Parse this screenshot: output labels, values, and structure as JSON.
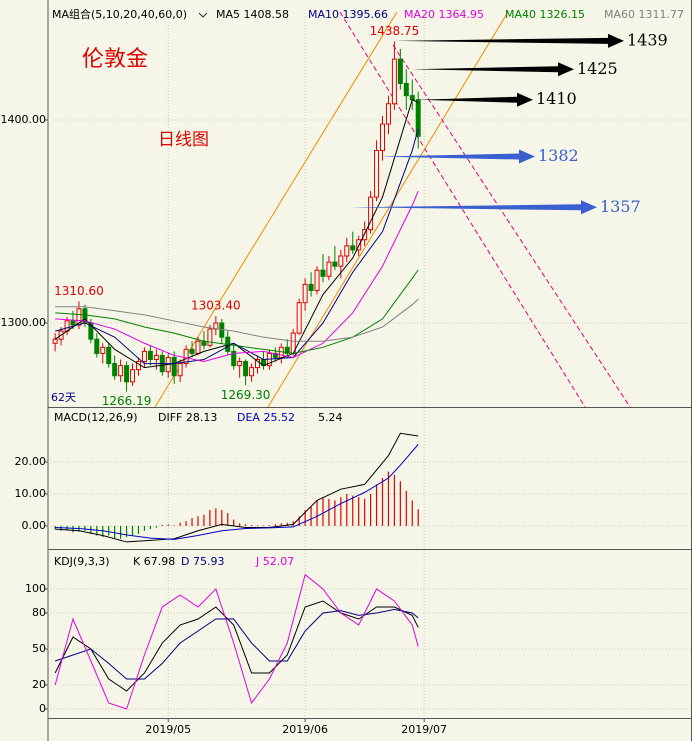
{
  "chart_data": [
    {
      "type": "candlestick",
      "title": "伦敦金",
      "subtitle": "日线图",
      "indicator_label": "MA组合(5,10,20,40,60,0)",
      "period_label": "62天",
      "xlim": [
        -1.2,
        107
      ],
      "xticks": [
        {
          "value": 19,
          "label": "2019/05"
        },
        {
          "value": 42,
          "label": "2019/06"
        },
        {
          "value": 62,
          "label": "2019/07"
        }
      ],
      "ylim": [
        1258.6,
        1454.2
      ],
      "yticks": [
        {
          "value": 1300,
          "label": "1300.00"
        },
        {
          "value": 1400,
          "label": "1400.00"
        }
      ],
      "grid": true,
      "up_color": "#e00000",
      "down_color": "#008000",
      "ohlc": [
        [
          1290,
          1295,
          1286,
          1292
        ],
        [
          1292,
          1298,
          1289,
          1296
        ],
        [
          1296,
          1303,
          1294,
          1301
        ],
        [
          1301,
          1306,
          1297,
          1299
        ],
        [
          1299,
          1310.6,
          1297,
          1307
        ],
        [
          1307,
          1309,
          1298,
          1300
        ],
        [
          1300,
          1302,
          1290,
          1292
        ],
        [
          1292,
          1295,
          1283,
          1285
        ],
        [
          1285,
          1290,
          1280,
          1288
        ],
        [
          1288,
          1290,
          1278,
          1280
        ],
        [
          1280,
          1284,
          1272,
          1274
        ],
        [
          1274,
          1282,
          1271,
          1279
        ],
        [
          1279,
          1281,
          1266.19,
          1271
        ],
        [
          1271,
          1280,
          1269,
          1277
        ],
        [
          1277,
          1283,
          1274,
          1281
        ],
        [
          1281,
          1288,
          1278,
          1286
        ],
        [
          1286,
          1289,
          1279,
          1282
        ],
        [
          1282,
          1287,
          1277,
          1284
        ],
        [
          1284,
          1286,
          1274,
          1276
        ],
        [
          1276,
          1285,
          1273,
          1283
        ],
        [
          1283,
          1286,
          1270,
          1274
        ],
        [
          1274,
          1282,
          1271,
          1280
        ],
        [
          1280,
          1289,
          1278,
          1287
        ],
        [
          1287,
          1291,
          1283,
          1285
        ],
        [
          1285,
          1293,
          1284,
          1291
        ],
        [
          1291,
          1296,
          1287,
          1289
        ],
        [
          1289,
          1299,
          1288,
          1297
        ],
        [
          1297,
          1303.4,
          1294,
          1300
        ],
        [
          1300,
          1302,
          1290,
          1293
        ],
        [
          1293,
          1296,
          1284,
          1286
        ],
        [
          1286,
          1290,
          1277,
          1279
        ],
        [
          1279,
          1283,
          1273,
          1281
        ],
        [
          1281,
          1282,
          1269.3,
          1274
        ],
        [
          1274,
          1280,
          1271,
          1278
        ],
        [
          1278,
          1284,
          1275,
          1282
        ],
        [
          1282,
          1286,
          1277,
          1279
        ],
        [
          1279,
          1287,
          1277,
          1285
        ],
        [
          1285,
          1288,
          1281,
          1283
        ],
        [
          1283,
          1290,
          1280,
          1288
        ],
        [
          1288,
          1292,
          1283,
          1285
        ],
        [
          1285,
          1297,
          1284,
          1295
        ],
        [
          1295,
          1312,
          1294,
          1310
        ],
        [
          1310,
          1322,
          1306,
          1319
        ],
        [
          1319,
          1325,
          1313,
          1316
        ],
        [
          1316,
          1328,
          1314,
          1326
        ],
        [
          1326,
          1334,
          1320,
          1323
        ],
        [
          1323,
          1333,
          1321,
          1330
        ],
        [
          1330,
          1338,
          1326,
          1328
        ],
        [
          1328,
          1336,
          1322,
          1333
        ],
        [
          1333,
          1342,
          1330,
          1338
        ],
        [
          1338,
          1345,
          1334,
          1336
        ],
        [
          1336,
          1343,
          1333,
          1341
        ],
        [
          1341,
          1350,
          1338,
          1346
        ],
        [
          1346,
          1365,
          1344,
          1362
        ],
        [
          1362,
          1390,
          1360,
          1385
        ],
        [
          1385,
          1402,
          1380,
          1398
        ],
        [
          1398,
          1412,
          1393,
          1408
        ],
        [
          1408,
          1438.75,
          1405,
          1430
        ],
        [
          1430,
          1435,
          1415,
          1418
        ],
        [
          1418,
          1425,
          1405,
          1412
        ],
        [
          1412,
          1420,
          1405,
          1410
        ],
        [
          1410,
          1414,
          1386,
          1392
        ]
      ],
      "series": [
        {
          "name": "MA5",
          "color": "#000000",
          "x": [
            0,
            5,
            10,
            15,
            20,
            25,
            30,
            35,
            40,
            45,
            50,
            55,
            60,
            61
          ],
          "values": [
            1292,
            1302,
            1287,
            1278,
            1280,
            1286,
            1290,
            1279,
            1285,
            1314,
            1332,
            1362,
            1410,
            1408.58
          ]
        },
        {
          "name": "MA10",
          "color": "#000080",
          "x": [
            0,
            5,
            10,
            15,
            20,
            25,
            30,
            35,
            40,
            45,
            50,
            55,
            60,
            61
          ],
          "values": [
            1296,
            1300,
            1293,
            1280,
            1280,
            1282,
            1290,
            1282,
            1283,
            1300,
            1325,
            1345,
            1385,
            1395.66
          ]
        },
        {
          "name": "MA20",
          "color": "#e000e0",
          "x": [
            0,
            5,
            10,
            15,
            20,
            25,
            30,
            35,
            40,
            45,
            50,
            55,
            60,
            61
          ],
          "values": [
            1302,
            1301,
            1297,
            1290,
            1284,
            1281,
            1285,
            1286,
            1283,
            1290,
            1305,
            1328,
            1358,
            1364.95
          ]
        },
        {
          "name": "MA40",
          "color": "#008000",
          "x": [
            0,
            5,
            10,
            15,
            20,
            25,
            30,
            35,
            40,
            45,
            50,
            55,
            60,
            61
          ],
          "values": [
            1305,
            1304,
            1302,
            1298,
            1295,
            1291,
            1289,
            1287,
            1285,
            1288,
            1293,
            1302,
            1322,
            1326.15
          ]
        },
        {
          "name": "MA60",
          "color": "#808080",
          "x": [
            0,
            5,
            10,
            15,
            20,
            25,
            30,
            35,
            40,
            45,
            50,
            55,
            60,
            61
          ],
          "values": [
            1308,
            1308,
            1306,
            1304,
            1301,
            1298,
            1296,
            1293,
            1291,
            1291,
            1293,
            1298,
            1309,
            1311.77
          ]
        }
      ],
      "extremes": [
        {
          "value": 1438.75,
          "color": "#e00000"
        },
        {
          "value": 1310.6,
          "label": "1310.60",
          "color": "#e00000"
        },
        {
          "value": 1303.4,
          "label": "1303.40",
          "color": "#e00000"
        },
        {
          "value": 1266.19,
          "color": "#008000"
        },
        {
          "value": 1269.3,
          "label": "1269.30",
          "color": "#008000"
        }
      ],
      "arrows": [
        {
          "value": 1439,
          "color": "#000000"
        },
        {
          "value": 1425,
          "color": "#000000"
        },
        {
          "value": 1410,
          "color": "#000000"
        },
        {
          "value": 1382,
          "color": "#3a5fd0"
        },
        {
          "value": 1357,
          "color": "#3a5fd0"
        }
      ]
    },
    {
      "type": "macd",
      "title": "MACD(12,26,9)",
      "ylim": [
        -6.9,
        36.9
      ],
      "yticks": [
        {
          "value": 20,
          "label": "20.00"
        },
        {
          "value": 10,
          "label": "10.00"
        },
        {
          "value": 0,
          "label": "0.00"
        }
      ],
      "series": [
        {
          "name": "DIFF",
          "color": "#000000",
          "x": [
            0,
            4,
            8,
            12,
            16,
            20,
            24,
            28,
            32,
            36,
            40,
            44,
            48,
            52,
            56,
            58,
            61
          ],
          "values": [
            -1,
            -1.5,
            -3,
            -5,
            -4.5,
            -4,
            -1.5,
            0.5,
            -0.5,
            -0.5,
            0.5,
            8,
            11.5,
            13,
            22,
            29,
            28.13
          ]
        },
        {
          "name": "DEA",
          "color": "#0000c0",
          "x": [
            0,
            4,
            8,
            12,
            16,
            20,
            24,
            28,
            32,
            36,
            40,
            44,
            48,
            52,
            56,
            58,
            61
          ],
          "values": [
            -0.5,
            -0.8,
            -1.5,
            -2.8,
            -3.8,
            -4.2,
            -3,
            -1.5,
            -0.8,
            -0.6,
            -0.3,
            3,
            7,
            10.5,
            15,
            19,
            25.52
          ]
        }
      ],
      "histogram": {
        "up_color": "#e00000",
        "down_color": "#008000",
        "values": [
          -1,
          -1.5,
          -1.2,
          -2,
          -1.8,
          -1.5,
          -2.5,
          -3,
          -3.5,
          -3,
          -3.8,
          -4,
          -3.5,
          -3,
          -2.5,
          -1.5,
          -1,
          -0.5,
          0.3,
          0.5,
          0.2,
          1,
          1.5,
          2.5,
          3,
          3.5,
          5,
          5.5,
          5,
          4,
          2,
          0.8,
          0.5,
          0.3,
          0.2,
          0.2,
          0.3,
          0.5,
          0.8,
          1,
          1.5,
          3,
          5,
          6,
          8,
          9,
          8.5,
          8,
          9,
          10,
          9.5,
          9,
          8.5,
          10,
          13,
          15,
          17,
          16,
          14,
          11,
          8,
          5.24
        ]
      }
    },
    {
      "type": "kdj",
      "title": "KDJ(9,3,3)",
      "ylim": [
        -7.5,
        132.5
      ],
      "yticks": [
        100,
        80,
        50,
        20,
        0
      ],
      "series": [
        {
          "name": "K",
          "color": "#000000",
          "x": [
            0,
            3,
            6,
            9,
            12,
            15,
            18,
            21,
            24,
            27,
            30,
            33,
            36,
            39,
            42,
            45,
            48,
            51,
            54,
            57,
            60,
            61
          ],
          "values": [
            30,
            60,
            50,
            25,
            15,
            30,
            55,
            70,
            75,
            85,
            70,
            30,
            30,
            45,
            85,
            90,
            80,
            75,
            85,
            85,
            78,
            67.98
          ]
        },
        {
          "name": "D",
          "color": "#000080",
          "x": [
            0,
            3,
            6,
            9,
            12,
            15,
            18,
            21,
            24,
            27,
            30,
            33,
            36,
            39,
            42,
            45,
            48,
            51,
            54,
            57,
            60,
            61
          ],
          "values": [
            40,
            45,
            50,
            38,
            25,
            25,
            38,
            55,
            65,
            75,
            75,
            55,
            40,
            40,
            65,
            80,
            82,
            78,
            80,
            83,
            80,
            75.93
          ]
        },
        {
          "name": "J",
          "color": "#e000e0",
          "x": [
            0,
            3,
            6,
            9,
            12,
            15,
            18,
            21,
            24,
            27,
            30,
            33,
            36,
            39,
            42,
            45,
            48,
            51,
            54,
            57,
            60,
            61
          ],
          "values": [
            20,
            75,
            40,
            5,
            0,
            45,
            85,
            95,
            85,
            100,
            55,
            5,
            25,
            55,
            112,
            100,
            80,
            70,
            100,
            90,
            70,
            52.07
          ]
        }
      ]
    }
  ]
}
